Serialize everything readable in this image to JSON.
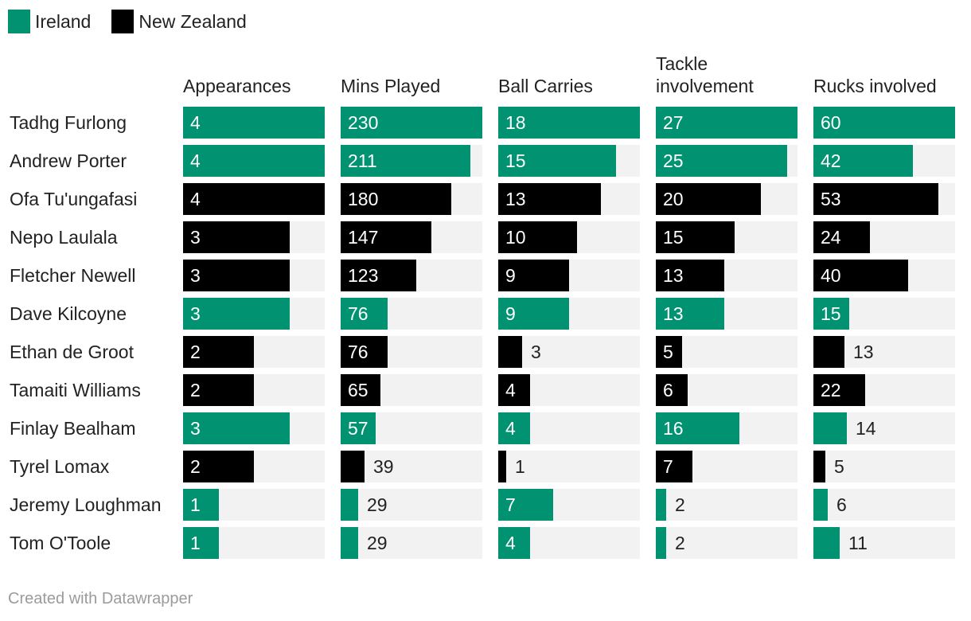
{
  "legend": [
    {
      "label": "Ireland",
      "color": "#019371"
    },
    {
      "label": "New Zealand",
      "color": "#000000"
    }
  ],
  "colors": {
    "Ireland": "#019371",
    "New Zealand": "#000000",
    "track": "#f2f2f2"
  },
  "chart_data": {
    "type": "table",
    "title": "",
    "columns": [
      {
        "name": "Appearances",
        "max": 4
      },
      {
        "name": "Mins Played",
        "max": 230
      },
      {
        "name": "Ball Carries",
        "max": 18
      },
      {
        "name": "Tackle involvement",
        "max": 27
      },
      {
        "name": "Rucks involved",
        "max": 60
      }
    ],
    "rows": [
      {
        "player": "Tadhg Furlong",
        "team": "Ireland",
        "values": [
          4,
          230,
          18,
          27,
          60
        ]
      },
      {
        "player": "Andrew Porter",
        "team": "Ireland",
        "values": [
          4,
          211,
          15,
          25,
          42
        ]
      },
      {
        "player": "Ofa Tu'ungafasi",
        "team": "New Zealand",
        "values": [
          4,
          180,
          13,
          20,
          53
        ]
      },
      {
        "player": "Nepo Laulala",
        "team": "New Zealand",
        "values": [
          3,
          147,
          10,
          15,
          24
        ]
      },
      {
        "player": "Fletcher Newell",
        "team": "New Zealand",
        "values": [
          3,
          123,
          9,
          13,
          40
        ]
      },
      {
        "player": "Dave Kilcoyne",
        "team": "Ireland",
        "values": [
          3,
          76,
          9,
          13,
          15
        ]
      },
      {
        "player": "Ethan de Groot",
        "team": "New Zealand",
        "values": [
          2,
          76,
          3,
          5,
          13
        ]
      },
      {
        "player": "Tamaiti Williams",
        "team": "New Zealand",
        "values": [
          2,
          65,
          4,
          6,
          22
        ]
      },
      {
        "player": "Finlay Bealham",
        "team": "Ireland",
        "values": [
          3,
          57,
          4,
          16,
          14
        ]
      },
      {
        "player": "Tyrel Lomax",
        "team": "New Zealand",
        "values": [
          2,
          39,
          1,
          7,
          5
        ]
      },
      {
        "player": "Jeremy Loughman",
        "team": "Ireland",
        "values": [
          1,
          29,
          7,
          2,
          6
        ]
      },
      {
        "player": "Tom O'Toole",
        "team": "Ireland",
        "values": [
          1,
          29,
          4,
          2,
          11
        ]
      }
    ]
  },
  "footer": {
    "credit": "Created with Datawrapper"
  }
}
